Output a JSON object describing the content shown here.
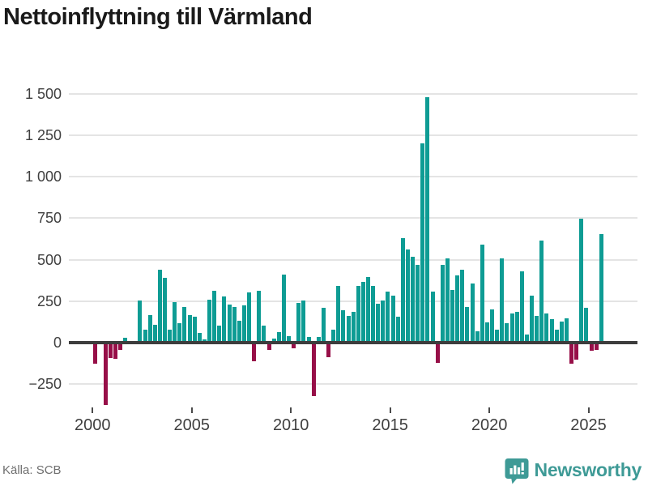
{
  "title": "Nettoinflyttning till Värmland",
  "source": {
    "text": "Källa: SCB"
  },
  "brand": {
    "name": "Newsworthy"
  },
  "colors": {
    "positive": "#0e9c94",
    "negative": "#970f48",
    "zero_axis": "#3d3d3d",
    "grid": "#e4e4e4",
    "title": "#1a1a1a",
    "axis_text": "#3f3f3f",
    "source_text": "#6f6f6f",
    "brand_teal": "#3e9a96"
  },
  "chart_data": {
    "type": "bar",
    "title": "Nettoinflyttning till Värmland",
    "xlabel": "",
    "ylabel": "",
    "x_unit": "quarter",
    "periods_per_year": 4,
    "first_period": "2000 Q1",
    "last_period": "2025 Q3",
    "ylim": [
      -400,
      1550
    ],
    "grid": "horizontal",
    "legend": "none",
    "y_ticks": [
      {
        "value": 1500,
        "label": "1 500"
      },
      {
        "value": 1250,
        "label": "1 250"
      },
      {
        "value": 1000,
        "label": "1 000"
      },
      {
        "value": 750,
        "label": "750"
      },
      {
        "value": 500,
        "label": "500"
      },
      {
        "value": 250,
        "label": "250"
      },
      {
        "value": 0,
        "label": "0"
      },
      {
        "value": -250,
        "label": "−250"
      }
    ],
    "x_ticks": [
      {
        "year": 2000,
        "label": "2000"
      },
      {
        "year": 2005,
        "label": "2005"
      },
      {
        "year": 2010,
        "label": "2010"
      },
      {
        "year": 2015,
        "label": "2015"
      },
      {
        "year": 2020,
        "label": "2020"
      },
      {
        "year": 2025,
        "label": "2025"
      }
    ],
    "values": [
      -119,
      0,
      -364,
      -81,
      -90,
      -36,
      20,
      0,
      0,
      242,
      66,
      155,
      97,
      428,
      382,
      66,
      234,
      107,
      206,
      155,
      148,
      48,
      8,
      247,
      304,
      92,
      271,
      221,
      205,
      123,
      216,
      292,
      -101,
      305,
      92,
      -36,
      17,
      54,
      402,
      30,
      -23,
      230,
      243,
      26,
      -315,
      22,
      202,
      -77,
      67,
      334,
      186,
      153,
      175,
      330,
      359,
      385,
      334,
      227,
      244,
      298,
      272,
      145,
      620,
      554,
      509,
      459,
      1193,
      1472,
      296,
      -110,
      457,
      498,
      310,
      395,
      428,
      203,
      346,
      59,
      583,
      112,
      190,
      68,
      498,
      109,
      166,
      175,
      418,
      41,
      275,
      150,
      606,
      165,
      133,
      66,
      117,
      138,
      -118,
      -94,
      740,
      198,
      -39,
      -33,
      647
    ]
  }
}
